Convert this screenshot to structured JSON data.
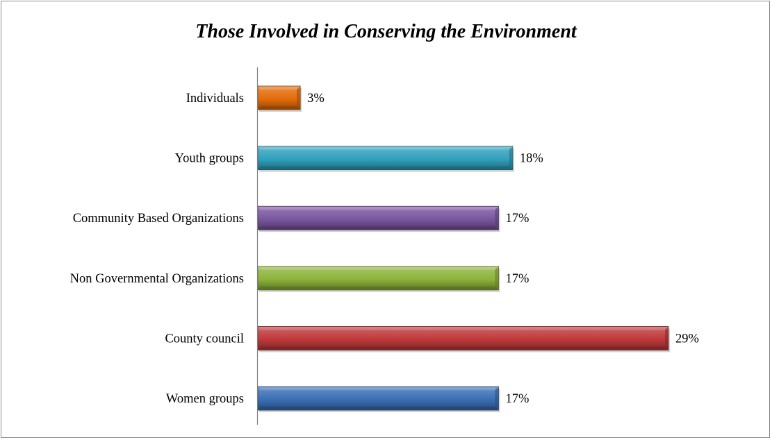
{
  "chart_data": {
    "type": "bar",
    "orientation": "horizontal",
    "title": "Those Involved in Conserving the Environment",
    "xlabel": "",
    "ylabel": "",
    "xlim": [
      0,
      30
    ],
    "value_format": "percent",
    "grid": false,
    "legend": "none",
    "categories": [
      "Individuals",
      "Youth groups",
      "Community Based Organizations",
      "Non Governmental Organizations",
      "County council",
      "Women groups"
    ],
    "values": [
      3,
      18,
      17,
      17,
      29,
      17
    ],
    "data_labels": [
      "3%",
      "18%",
      "17%",
      "17%",
      "29%",
      "17%"
    ],
    "colors": [
      "#e46c0a",
      "#31a1bd",
      "#7a569f",
      "#8db33a",
      "#c0393a",
      "#3a6fb5"
    ]
  }
}
